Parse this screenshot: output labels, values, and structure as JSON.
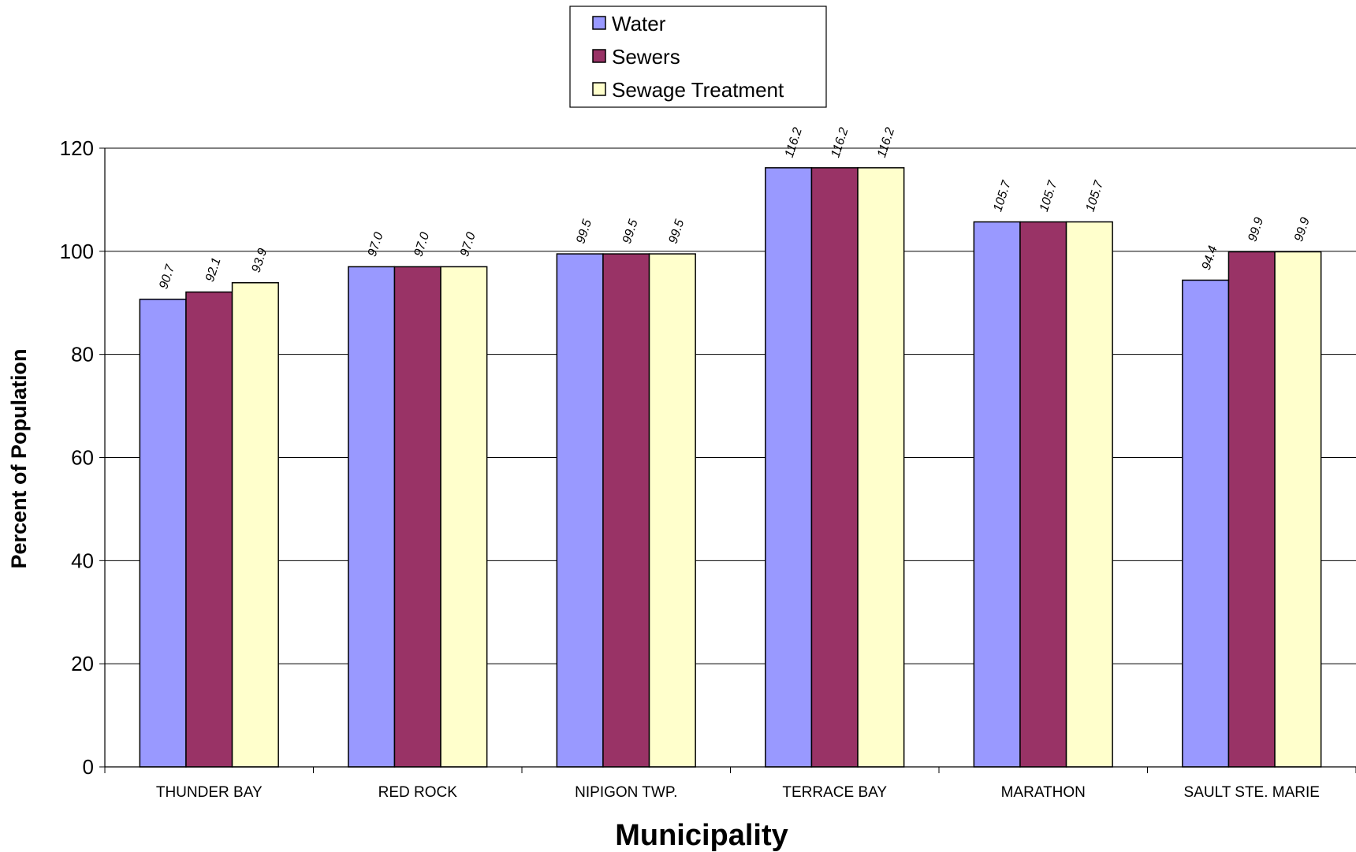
{
  "chart_data": {
    "type": "bar",
    "title": "",
    "xlabel": "Municipality",
    "ylabel": "Percent of Population",
    "ylim": [
      0,
      120
    ],
    "yticks": [
      "0",
      "20",
      "40",
      "60",
      "80",
      "100",
      "120"
    ],
    "grid": true,
    "legend_position": "top-center",
    "categories": [
      "THUNDER BAY",
      "RED ROCK",
      "NIPIGON TWP.",
      "TERRACE BAY",
      "MARATHON",
      "SAULT STE. MARIE"
    ],
    "series": [
      {
        "name": "Water",
        "color": "#9999ff",
        "values": [
          90.7,
          97.0,
          99.5,
          116.2,
          105.7,
          94.4
        ],
        "labels": [
          "90.7",
          "97.0",
          "99.5",
          "116.2",
          "105.7",
          "94.4"
        ]
      },
      {
        "name": "Sewers",
        "color": "#993366",
        "values": [
          92.1,
          97.0,
          99.5,
          116.2,
          105.7,
          99.9
        ],
        "labels": [
          "92.1",
          "97.0",
          "99.5",
          "116.2",
          "105.7",
          "99.9"
        ]
      },
      {
        "name": "Sewage Treatment",
        "color": "#ffffcc",
        "values": [
          93.9,
          97.0,
          99.5,
          116.2,
          105.7,
          99.9
        ],
        "labels": [
          "93.9",
          "97.0",
          "99.5",
          "116.2",
          "105.7",
          "99.9"
        ]
      }
    ]
  }
}
